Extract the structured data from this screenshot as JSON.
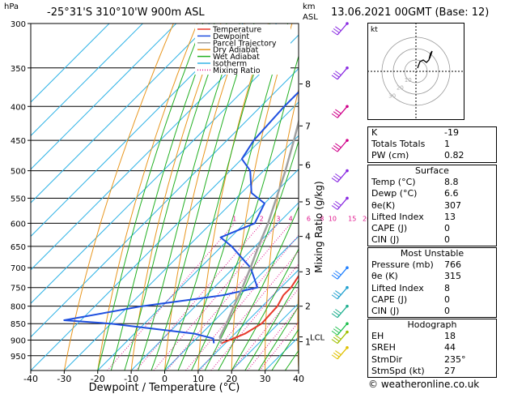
{
  "header": {
    "hpa_label": "hPa",
    "location": "-25°31'S  310°10'W  900m  ASL",
    "km_label": "km",
    "asl_label": "ASL",
    "datetime": "13.06.2021  00GMT  (Base: 12)"
  },
  "chart_data": {
    "type": "line",
    "title": "",
    "xlabel": "Dewpoint / Temperature (°C)",
    "ylabel": "",
    "xlim": [
      -40,
      40
    ],
    "pressure_range": [
      300,
      1000
    ],
    "skew": true,
    "pressure_ticks": [
      300,
      350,
      400,
      450,
      500,
      550,
      600,
      650,
      700,
      750,
      800,
      850,
      900,
      950
    ],
    "x_ticks": [
      -40,
      -30,
      -20,
      -10,
      0,
      10,
      20,
      30,
      40
    ],
    "height_axis_label": "Mixing Ratio (g/kg)",
    "height_ticks": [
      {
        "km": "8",
        "p": 370
      },
      {
        "km": "7",
        "p": 428
      },
      {
        "km": "6",
        "p": 490
      },
      {
        "km": "5",
        "p": 557
      },
      {
        "km": "4",
        "p": 628
      },
      {
        "km": "3",
        "p": 710
      },
      {
        "km": "2",
        "p": 800
      },
      {
        "km": "1",
        "p": 905
      }
    ],
    "lcl": {
      "label": "LCL",
      "p": 890
    },
    "mixing_ratio_labels": [
      "1",
      "2",
      "3",
      "4",
      "6",
      "8",
      "10",
      "15",
      "20",
      "25"
    ],
    "legend": [
      {
        "name": "Temperature",
        "color": "#e8392a"
      },
      {
        "name": "Dewpoint",
        "color": "#2050e0"
      },
      {
        "name": "Parcel Trajectory",
        "color": "#a0a0a0"
      },
      {
        "name": "Dry Adiabat",
        "color": "#e8961e"
      },
      {
        "name": "Wet Adiabat",
        "color": "#22b022"
      },
      {
        "name": "Isotherm",
        "color": "#32b4e6"
      },
      {
        "name": "Mixing Ratio",
        "color": "#e0148c"
      }
    ],
    "series": [
      {
        "name": "Temperature",
        "color": "#e8392a",
        "points": [
          [
            910,
            8.8
          ],
          [
            895,
            11
          ],
          [
            880,
            13
          ],
          [
            850,
            15
          ],
          [
            800,
            14.5
          ],
          [
            770,
            13
          ],
          [
            750,
            13
          ],
          [
            700,
            11
          ],
          [
            650,
            8.5
          ],
          [
            600,
            6
          ],
          [
            560,
            2.5
          ],
          [
            550,
            1
          ],
          [
            500,
            -2
          ],
          [
            450,
            -7
          ],
          [
            400,
            -14.5
          ],
          [
            350,
            -23.5
          ],
          [
            320,
            -30
          ],
          [
            300,
            -33
          ]
        ]
      },
      {
        "name": "Dewpoint",
        "color": "#2050e0",
        "points": [
          [
            910,
            6.6
          ],
          [
            895,
            5
          ],
          [
            880,
            -2
          ],
          [
            850,
            -30
          ],
          [
            840,
            -45
          ],
          [
            800,
            -26
          ],
          [
            780,
            -12
          ],
          [
            770,
            -5
          ],
          [
            750,
            3
          ],
          [
            700,
            -5
          ],
          [
            650,
            -17
          ],
          [
            630,
            -23
          ],
          [
            600,
            -17
          ],
          [
            560,
            -20
          ],
          [
            540,
            -27
          ],
          [
            500,
            -34
          ],
          [
            480,
            -40
          ],
          [
            450,
            -42
          ],
          [
            400,
            -43
          ],
          [
            370,
            -43
          ],
          [
            350,
            -45
          ],
          [
            300,
            -56
          ]
        ]
      },
      {
        "name": "Parcel Trajectory",
        "color": "#a0a0a0",
        "points": [
          [
            910,
            8.8
          ],
          [
            890,
            6.5
          ],
          [
            850,
            4.5
          ],
          [
            800,
            1.5
          ],
          [
            750,
            -1.5
          ],
          [
            700,
            -5
          ],
          [
            650,
            -9
          ],
          [
            600,
            -13
          ],
          [
            550,
            -18
          ],
          [
            500,
            -23.5
          ],
          [
            450,
            -30
          ],
          [
            400,
            -37.5
          ],
          [
            350,
            -46
          ],
          [
            300,
            -56
          ]
        ]
      }
    ]
  },
  "winds": {
    "colors": [
      "#8a2be2",
      "#8a2be2",
      "#d0008a",
      "#d0008a",
      "#8a2be2",
      "#8a2be2",
      "#2080ff",
      "#20a0d0",
      "#20b090",
      "#20c050",
      "#a0c000",
      "#e0c000"
    ]
  },
  "hodograph": {
    "unit": "kt",
    "ring_labels": [
      "10",
      "20",
      "30"
    ]
  },
  "indices": [
    {
      "label": "K",
      "value": "-19"
    },
    {
      "label": "Totals Totals",
      "value": "1"
    },
    {
      "label": "PW (cm)",
      "value": "0.82"
    }
  ],
  "surface": {
    "title": "Surface",
    "rows": [
      {
        "label": "Temp (°C)",
        "value": "8.8"
      },
      {
        "label": "Dewp (°C)",
        "value": "6.6"
      },
      {
        "label": "θe(K)",
        "value": "307"
      },
      {
        "label": "Lifted Index",
        "value": "13"
      },
      {
        "label": "CAPE (J)",
        "value": "0"
      },
      {
        "label": "CIN (J)",
        "value": "0"
      }
    ]
  },
  "most_unstable": {
    "title": "Most Unstable",
    "rows": [
      {
        "label": "Pressure (mb)",
        "value": "766"
      },
      {
        "label": "θe (K)",
        "value": "315"
      },
      {
        "label": "Lifted Index",
        "value": "8"
      },
      {
        "label": "CAPE (J)",
        "value": "0"
      },
      {
        "label": "CIN (J)",
        "value": "0"
      }
    ]
  },
  "hodograph_table": {
    "title": "Hodograph",
    "rows": [
      {
        "label": "EH",
        "value": "18"
      },
      {
        "label": "SREH",
        "value": "44"
      },
      {
        "label": "StmDir",
        "value": "235°"
      },
      {
        "label": "StmSpd (kt)",
        "value": "27"
      }
    ]
  },
  "credit": "© weatheronline.co.uk"
}
